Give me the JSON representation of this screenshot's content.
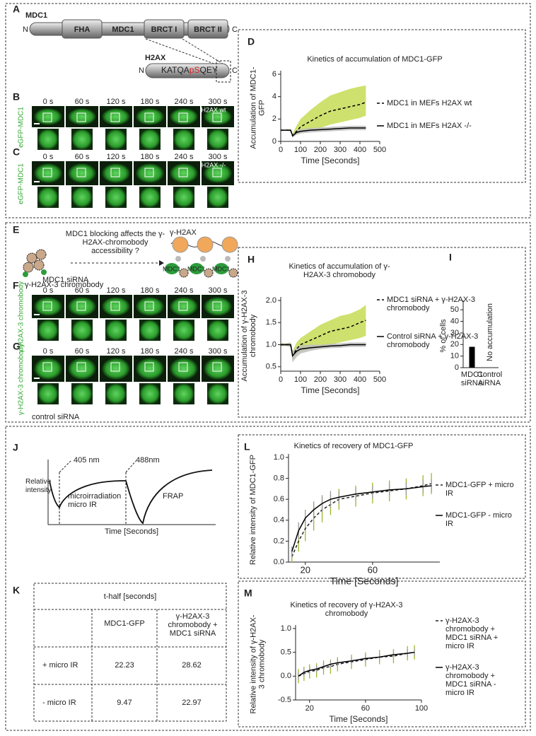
{
  "figure": {
    "A": {
      "panel": "A",
      "title": "MDC1",
      "n": "N",
      "c": "C",
      "domains": [
        "FHA",
        "MDC1",
        "BRCT I",
        "BRCT II"
      ],
      "h2ax": {
        "title": "H2AX",
        "n": "N",
        "c": "C",
        "seq": [
          "KATQA",
          "pS",
          "QEY"
        ]
      }
    },
    "B": {
      "panel": "B",
      "label": "eGFP-MDC1",
      "tag": "H2AX wt",
      "times": [
        "0 s",
        "60 s",
        "120 s",
        "180 s",
        "240 s",
        "300 s"
      ]
    },
    "C": {
      "panel": "C",
      "label": "eGFP-MDC1",
      "tag": "H2AX -/-",
      "times": [
        "0 s",
        "60 s",
        "120 s",
        "180 s",
        "240 s",
        "300 s"
      ]
    },
    "E": {
      "panel": "E",
      "question": "MDC1 blocking affects the γ-H2AX-chromobody accessibility ?",
      "target": "γ-H2AX",
      "probe": "γ-H2AX-3 chromobody",
      "binders": [
        "MDC1",
        "MDC1",
        "MDC1"
      ]
    },
    "F": {
      "panel": "F",
      "condition": "MDC1 siRNA",
      "label": "γ-H2AX-3 chromobody",
      "times": [
        "0 s",
        "60 s",
        "120 s",
        "180 s",
        "240 s",
        "300 s"
      ]
    },
    "G": {
      "panel": "G",
      "condition": "control siRNA",
      "label": "γ-H2AX-3 chromobody",
      "times": [
        "0 s",
        "60 s",
        "120 s",
        "180 s",
        "240 s",
        "300 s"
      ]
    },
    "J": {
      "panel": "J",
      "laser1": "405 nm",
      "laser2": "488nm",
      "ylabel": "Relative intensity",
      "phase1": "microirradiation micro IR",
      "phase2": "FRAP",
      "xlabel": "Time [Seconds]"
    },
    "K": {
      "panel": "K",
      "title": "t-half [seconds]",
      "columns": [
        "MDC1-GFP",
        "γ-H2AX-3 chromobody + MDC1 siRNA"
      ],
      "rows": [
        {
          "label": "+ micro IR",
          "values": [
            22.23,
            28.62
          ]
        },
        {
          "label": "- micro IR",
          "values": [
            9.47,
            22.97
          ]
        }
      ]
    }
  },
  "chart_data": [
    {
      "type": "line",
      "panel": "D",
      "title": "Kinetics of accumulation of  MDC1-GFP",
      "xlabel": "Time [Seconds]",
      "ylabel": "Accumulation of MDC1-GFP",
      "x": [
        0,
        30,
        50,
        60,
        80,
        100,
        150,
        200,
        250,
        300,
        350,
        400,
        430
      ],
      "xlim": [
        0,
        500
      ],
      "xticks": [
        0,
        100,
        200,
        300,
        400,
        500
      ],
      "ylim": [
        0,
        6
      ],
      "yticks": [
        0,
        2,
        4,
        6
      ],
      "series": [
        {
          "name": "MDC1 in MEFs H2AX wt",
          "color": "#000000",
          "linestyle": "dashed",
          "band_color": "#c6dc55",
          "values": [
            1,
            1,
            1,
            0.5,
            0.9,
            1.3,
            1.8,
            2.3,
            2.7,
            2.9,
            3.1,
            3.3,
            3.5
          ],
          "band_lower": [
            0.95,
            0.95,
            0.9,
            0.4,
            0.6,
            0.8,
            1.0,
            1.2,
            1.5,
            1.7,
            1.9,
            2.1,
            2.3
          ],
          "band_upper": [
            1.05,
            1.05,
            1.1,
            0.7,
            1.4,
            2.0,
            2.8,
            3.5,
            4.1,
            4.4,
            4.7,
            4.9,
            5.0
          ]
        },
        {
          "name": "MDC1 in MEFs H2AX -/-",
          "color": "#000000",
          "linestyle": "solid",
          "band_color": "#bdbdbd",
          "values": [
            1,
            1,
            1,
            0.5,
            0.8,
            0.9,
            1.0,
            1.05,
            1.1,
            1.15,
            1.2,
            1.2,
            1.2
          ],
          "band_lower": [
            0.95,
            0.95,
            0.9,
            0.35,
            0.6,
            0.7,
            0.8,
            0.85,
            0.9,
            0.95,
            1.0,
            1.0,
            1.0
          ],
          "band_upper": [
            1.05,
            1.05,
            1.1,
            0.65,
            1.0,
            1.1,
            1.2,
            1.25,
            1.3,
            1.35,
            1.4,
            1.4,
            1.4
          ]
        }
      ]
    },
    {
      "type": "line",
      "panel": "H",
      "title": "Kinetics of accumulation of γ-H2AX-3 chromobody",
      "xlabel": "Time [Seconds]",
      "ylabel": "Accumulation of γ-H2AX-3 chromobody",
      "x": [
        0,
        30,
        50,
        60,
        80,
        100,
        150,
        200,
        250,
        300,
        350,
        400,
        430
      ],
      "xlim": [
        0,
        500
      ],
      "xticks": [
        0,
        100,
        200,
        300,
        400,
        500
      ],
      "ylim": [
        0.4,
        2.0
      ],
      "yticks": [
        0.5,
        {
          "value": 1,
          "label": "1.0"
        },
        1.5,
        {
          "value": 2,
          "label": "2.0"
        }
      ],
      "series": [
        {
          "name": "MDC1 siRNA + γ-H2AX-3 chromobody",
          "color": "#000000",
          "linestyle": "dashed",
          "band_color": "#c6dc55",
          "values": [
            1,
            1,
            1,
            0.75,
            0.9,
            1.0,
            1.1,
            1.2,
            1.3,
            1.35,
            1.4,
            1.5,
            1.55
          ],
          "band_lower": [
            0.97,
            0.97,
            0.95,
            0.65,
            0.8,
            0.85,
            0.9,
            0.95,
            1.0,
            1.05,
            1.1,
            1.15,
            1.2
          ],
          "band_upper": [
            1.03,
            1.03,
            1.05,
            0.85,
            1.05,
            1.15,
            1.3,
            1.45,
            1.55,
            1.65,
            1.7,
            1.8,
            1.9
          ]
        },
        {
          "name": "Control siRNA + γ-H2AX-3 chromobody",
          "color": "#000000",
          "linestyle": "solid",
          "band_color": "#bdbdbd",
          "values": [
            1,
            1,
            1,
            0.75,
            0.85,
            0.9,
            0.93,
            0.95,
            0.97,
            0.98,
            1.0,
            1.0,
            1.0
          ],
          "band_lower": [
            0.97,
            0.97,
            0.95,
            0.6,
            0.72,
            0.8,
            0.86,
            0.9,
            0.92,
            0.93,
            0.95,
            0.95,
            0.95
          ],
          "band_upper": [
            1.03,
            1.03,
            1.05,
            0.85,
            0.95,
            0.98,
            1.0,
            1.0,
            1.02,
            1.03,
            1.05,
            1.05,
            1.05
          ]
        }
      ]
    },
    {
      "type": "bar",
      "panel": "I",
      "ylabel": "% of cells",
      "categories": [
        "MDC1 siRNA",
        "Control siRNA"
      ],
      "values": [
        18,
        0
      ],
      "color": "#000000",
      "annotation": "No accumulation",
      "ylim": [
        0,
        55
      ],
      "yticks": [
        0,
        10,
        20,
        30,
        40,
        50
      ]
    },
    {
      "type": "line",
      "panel": "L",
      "title": "Kinetics of recovery of MDC1-GFP",
      "xlabel": "Time [Seconds]",
      "ylabel": "Relative intensity of MDC1-GFP",
      "x": [
        12,
        16,
        20,
        25,
        30,
        35,
        40,
        50,
        60,
        70,
        80,
        90,
        95
      ],
      "xlim": [
        10,
        100
      ],
      "xticks": [
        20,
        60
      ],
      "ylim": [
        0,
        1.0
      ],
      "yticks": [
        {
          "value": 0,
          "label": "0.0"
        },
        0.2,
        0.4,
        0.6,
        0.8,
        {
          "value": 1,
          "label": "1.0"
        }
      ],
      "series": [
        {
          "name": "MDC1-GFP + micro IR",
          "color": "#222222",
          "linestyle": "dashed",
          "error_color": "#9ab82a",
          "values": [
            0.05,
            0.2,
            0.32,
            0.42,
            0.5,
            0.55,
            0.6,
            0.63,
            0.66,
            0.68,
            0.7,
            0.73,
            0.75
          ],
          "errors": [
            0.05,
            0.1,
            0.12,
            0.12,
            0.12,
            0.1,
            0.1,
            0.1,
            0.1,
            0.1,
            0.1,
            0.1,
            0.1
          ]
        },
        {
          "name": "MDC1-GFP - micro IR",
          "color": "#000000",
          "linestyle": "solid",
          "error_color": "#9a9a9a",
          "values": [
            0.1,
            0.3,
            0.42,
            0.5,
            0.56,
            0.6,
            0.62,
            0.65,
            0.67,
            0.69,
            0.7,
            0.72,
            0.73
          ],
          "errors": [
            0.05,
            0.08,
            0.08,
            0.08,
            0.08,
            0.08,
            0.06,
            0.06,
            0.06,
            0.06,
            0.06,
            0.06,
            0.06
          ]
        }
      ]
    },
    {
      "type": "line",
      "panel": "M",
      "title": "Kinetics of recovery of  γ-H2AX-3 chromobody",
      "xlabel": "Time [Seconds]",
      "ylabel": "Relative intensity of γ-H2AX-3 chromobody",
      "x": [
        12,
        16,
        20,
        25,
        30,
        35,
        40,
        50,
        60,
        70,
        80,
        90,
        95
      ],
      "xlim": [
        10,
        100
      ],
      "xticks": [
        20,
        60,
        100
      ],
      "ylim": [
        -0.5,
        1.0
      ],
      "yticks": [
        -0.5,
        {
          "value": 0,
          "label": "0.0"
        },
        0.5,
        {
          "value": 1,
          "label": "1.0"
        }
      ],
      "series": [
        {
          "name": "γ-H2AX-3 chromobody + MDC1 siRNA + micro IR",
          "color": "#222222",
          "linestyle": "dashed",
          "error_color": "#9ab82a",
          "values": [
            0.0,
            0.05,
            0.1,
            0.12,
            0.18,
            0.2,
            0.25,
            0.3,
            0.35,
            0.4,
            0.42,
            0.48,
            0.5
          ],
          "errors": [
            0.15,
            0.15,
            0.15,
            0.15,
            0.15,
            0.15,
            0.15,
            0.15,
            0.15,
            0.15,
            0.15,
            0.15,
            0.15
          ]
        },
        {
          "name": "γ-H2AX-3 chromobody + MDC1 siRNA - micro IR",
          "color": "#000000",
          "linestyle": "solid",
          "error_color": "#9a9a9a",
          "values": [
            0.0,
            0.08,
            0.12,
            0.15,
            0.2,
            0.25,
            0.28,
            0.32,
            0.37,
            0.4,
            0.45,
            0.48,
            0.5
          ],
          "errors": [
            0.08,
            0.08,
            0.08,
            0.08,
            0.08,
            0.08,
            0.08,
            0.08,
            0.08,
            0.08,
            0.08,
            0.08,
            0.08
          ]
        }
      ]
    }
  ]
}
